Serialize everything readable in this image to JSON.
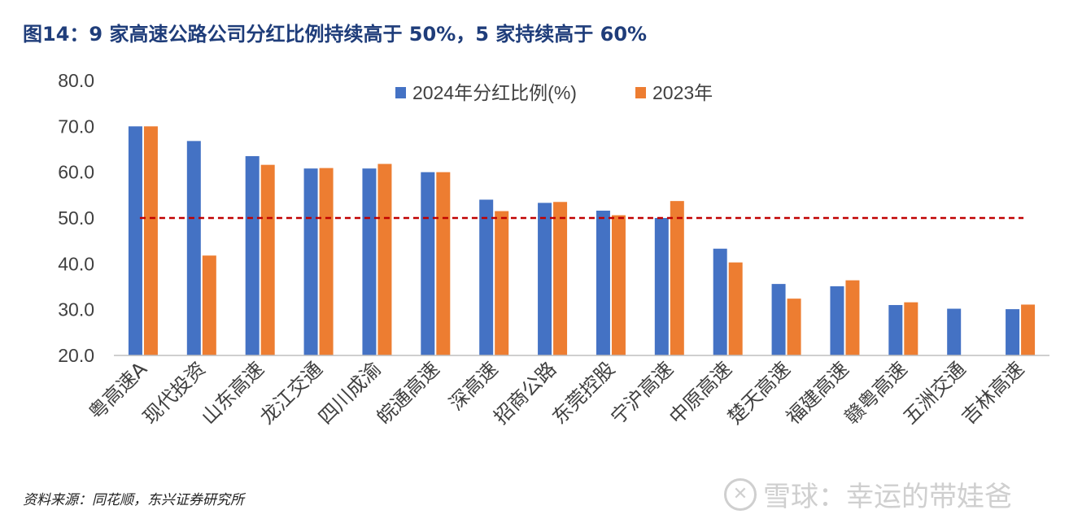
{
  "title": "图14：9 家高速公路公司分红比例持续高于 50%，5 家持续高于 60%",
  "source": "资料来源：同花顺，东兴证券研究所",
  "watermark": {
    "text": "雪球：幸运的带娃爸",
    "icon": "xueqiu-logo-icon"
  },
  "colors": {
    "series2024": "#4472c4",
    "series2023": "#ed7d31",
    "reference": "#c00000",
    "axis": "#595959",
    "text": "#404040"
  },
  "chart_data": {
    "type": "bar",
    "title": "",
    "categories": [
      "粤高速A",
      "现代投资",
      "山东高速",
      "龙江交通",
      "四川成渝",
      "皖通高速",
      "深高速",
      "招商公路",
      "东莞控股",
      "宁沪高速",
      "中原高速",
      "楚天高速",
      "福建高速",
      "赣粤高速",
      "五洲交通",
      "吉林高速"
    ],
    "series": [
      {
        "name": "2024年分红比例(%)",
        "values": [
          70.0,
          66.8,
          63.5,
          60.8,
          60.8,
          60.0,
          54.0,
          53.3,
          51.6,
          50.0,
          43.3,
          35.6,
          35.1,
          31.0,
          30.2,
          30.1
        ]
      },
      {
        "name": "2023年",
        "values": [
          70.0,
          41.8,
          61.6,
          60.9,
          61.8,
          60.0,
          51.5,
          53.5,
          50.6,
          53.7,
          40.3,
          32.4,
          36.4,
          31.6,
          null,
          31.1
        ]
      }
    ],
    "reference_line": 50,
    "ylim": [
      20,
      80
    ],
    "yticks": [
      "20.0",
      "30.0",
      "40.0",
      "50.0",
      "60.0",
      "70.0",
      "80.0"
    ],
    "xlabel": "",
    "ylabel": "",
    "legend": "top-center",
    "grid": false
  }
}
